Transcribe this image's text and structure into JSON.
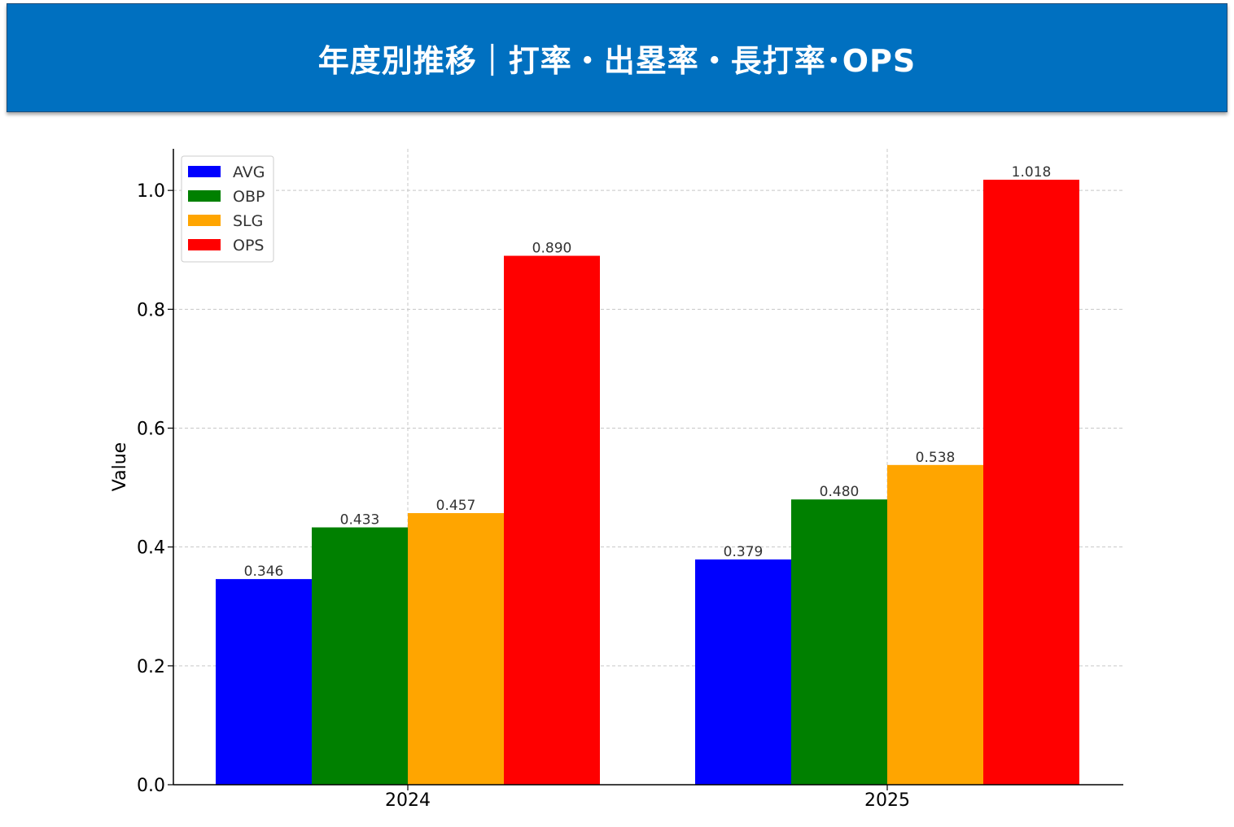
{
  "header": {
    "title": "年度別推移｜打率・出塁率・長打率･OPS",
    "background": "#0070c0"
  },
  "chart_data": {
    "type": "bar",
    "categories": [
      "2024",
      "2025"
    ],
    "series": [
      {
        "name": "AVG",
        "color": "#0000ff",
        "values": [
          0.346,
          0.379
        ],
        "labels": [
          "0.346",
          "0.379"
        ]
      },
      {
        "name": "OBP",
        "color": "#008000",
        "values": [
          0.433,
          0.48
        ],
        "labels": [
          "0.433",
          "0.480"
        ]
      },
      {
        "name": "SLG",
        "color": "#ffa500",
        "values": [
          0.457,
          0.538
        ],
        "labels": [
          "0.457",
          "0.538"
        ]
      },
      {
        "name": "OPS",
        "color": "#ff0000",
        "values": [
          0.89,
          1.018
        ],
        "labels": [
          "0.890",
          "1.018"
        ]
      }
    ],
    "xlabel": "",
    "ylabel": "Value",
    "ylim": [
      0,
      1.07
    ],
    "yticks": [
      0.0,
      0.2,
      0.4,
      0.6,
      0.8,
      1.0
    ],
    "ytick_labels": [
      "0.0",
      "0.2",
      "0.4",
      "0.6",
      "0.8",
      "1.0"
    ],
    "grid": true,
    "legend_position": "top-left"
  }
}
